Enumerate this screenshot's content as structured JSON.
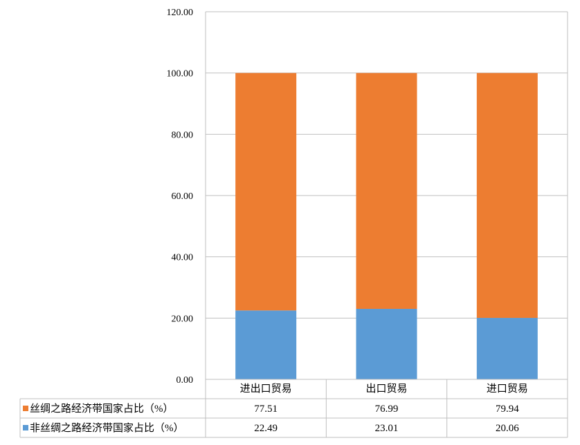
{
  "chart_data": {
    "type": "bar",
    "stacked": true,
    "categories": [
      "进出口贸易",
      "出口贸易",
      "进口贸易"
    ],
    "series": [
      {
        "name": "非丝绸之路经济带国家占比（%）",
        "values": [
          22.49,
          23.01,
          20.06
        ],
        "color": "#5B9BD5"
      },
      {
        "name": "丝绸之路经济带国家占比（%）",
        "values": [
          77.51,
          76.99,
          79.94
        ],
        "color": "#ED7D31"
      }
    ],
    "ylim": [
      0,
      120
    ],
    "yticks": [
      "0.00",
      "20.00",
      "40.00",
      "60.00",
      "80.00",
      "100.00",
      "120.00"
    ],
    "table_rows": [
      {
        "label": "丝绸之路经济带国家占比（%）",
        "values": [
          "77.51",
          "76.99",
          "79.94"
        ],
        "color": "#ED7D31"
      },
      {
        "label": "非丝绸之路经济带国家占比（%）",
        "values": [
          "22.49",
          "23.01",
          "20.06"
        ],
        "color": "#5B9BD5"
      }
    ],
    "grid": true,
    "legend": "data-table"
  }
}
